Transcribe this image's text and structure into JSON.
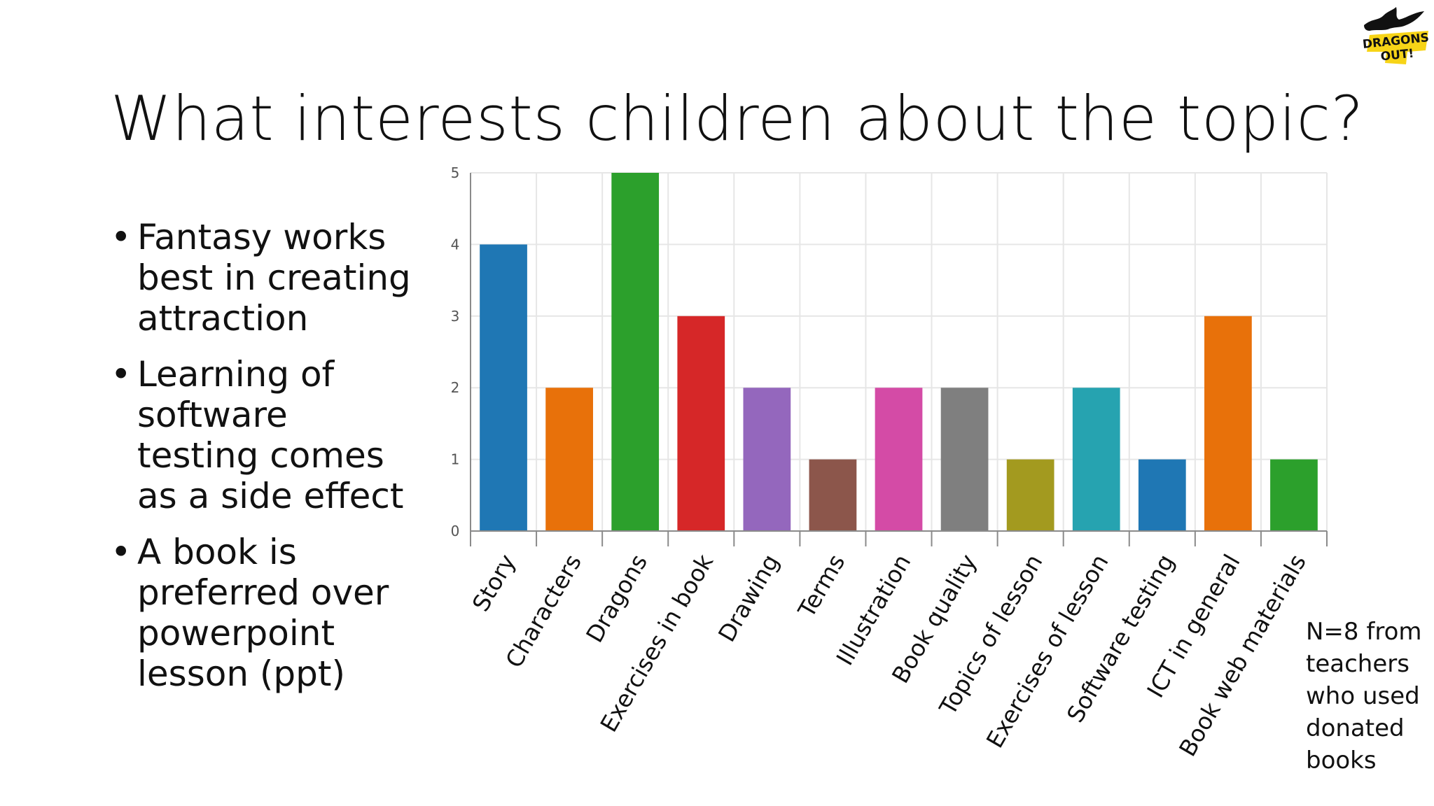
{
  "slide": {
    "title": "What interests children about the topic?",
    "bullets": [
      "Fantasy works best in creating attraction",
      "Learning of software testing comes as a side effect",
      "A book is preferred over powerpoint lesson (ppt)"
    ],
    "note": "N=8 from\nteachers\nwho used\ndonated\nbooks",
    "logo": {
      "text_line1": "DRAGONS",
      "text_line2": "OUT!",
      "icon": "dragon-logo",
      "accent": "#f7d417"
    }
  },
  "chart_data": {
    "type": "bar",
    "categories": [
      "Story",
      "Characters",
      "Dragons",
      "Exercises in book",
      "Drawing",
      "Terms",
      "Illustration",
      "Book quality",
      "Topics of lesson",
      "Exercises of lesson",
      "Software testing",
      "ICT in general",
      "Book web materials"
    ],
    "values": [
      4,
      2,
      5,
      3,
      2,
      1,
      2,
      2,
      1,
      2,
      1,
      3,
      1
    ],
    "colors": [
      "#1f77b4",
      "#e8710a",
      "#2ca02c",
      "#d62728",
      "#9467bd",
      "#8c564b",
      "#d44ba6",
      "#7f7f7f",
      "#a39a1f",
      "#26a3b0",
      "#1f77b4",
      "#e8710a",
      "#2ca02c"
    ],
    "yticks": [
      "0",
      "1",
      "2",
      "3",
      "4",
      "5"
    ],
    "ylim": [
      0,
      5
    ],
    "grid": true,
    "title": "",
    "xlabel": "",
    "ylabel": ""
  }
}
